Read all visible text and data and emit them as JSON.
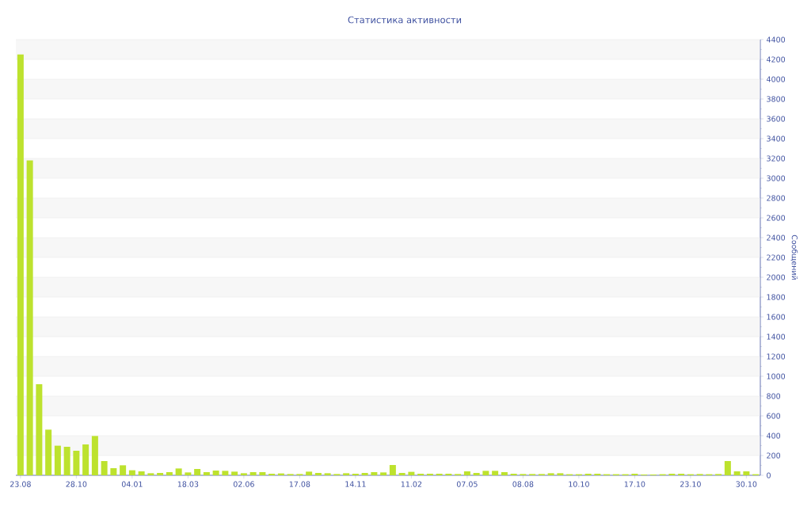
{
  "chart_data": {
    "type": "bar",
    "title": "Статистика активности",
    "ylabel": "Сообщений",
    "categories": [
      "23.08",
      null,
      null,
      null,
      null,
      null,
      "28.10",
      null,
      null,
      null,
      null,
      null,
      "04.01",
      null,
      null,
      null,
      null,
      null,
      "18.03",
      null,
      null,
      null,
      null,
      null,
      "02.06",
      null,
      null,
      null,
      null,
      null,
      "17.08",
      null,
      null,
      null,
      null,
      null,
      "14.11",
      null,
      null,
      null,
      null,
      null,
      "11.02",
      null,
      null,
      null,
      null,
      null,
      "07.05",
      null,
      null,
      null,
      null,
      null,
      "08.08",
      null,
      null,
      null,
      null,
      null,
      "10.10",
      null,
      null,
      null,
      null,
      null,
      "17.10",
      null,
      null,
      null,
      null,
      null,
      "23.10",
      null,
      null,
      null,
      null,
      null,
      "30.10",
      null
    ],
    "values": [
      4250,
      3180,
      920,
      461,
      299,
      288,
      248,
      312,
      397,
      144,
      72,
      101,
      51,
      40,
      21,
      24,
      32,
      69,
      29,
      64,
      32,
      48,
      45,
      37,
      21,
      32,
      32,
      16,
      19,
      13,
      13,
      37,
      24,
      21,
      13,
      21,
      16,
      24,
      32,
      29,
      104,
      24,
      35,
      16,
      16,
      16,
      16,
      13,
      40,
      24,
      45,
      45,
      32,
      16,
      13,
      13,
      13,
      21,
      21,
      11,
      11,
      16,
      16,
      11,
      11,
      11,
      16,
      8,
      8,
      11,
      16,
      16,
      11,
      13,
      11,
      13,
      144,
      40,
      40,
      11
    ],
    "color": "#bde22e",
    "ylim": [
      0,
      4400
    ],
    "yticks": [
      0,
      200,
      400,
      600,
      800,
      1000,
      1200,
      1400,
      1600,
      1800,
      2000,
      2200,
      2400,
      2600,
      2800,
      3000,
      3200,
      3400,
      3600,
      3800,
      4000,
      4200,
      4400
    ],
    "grid": "y"
  }
}
